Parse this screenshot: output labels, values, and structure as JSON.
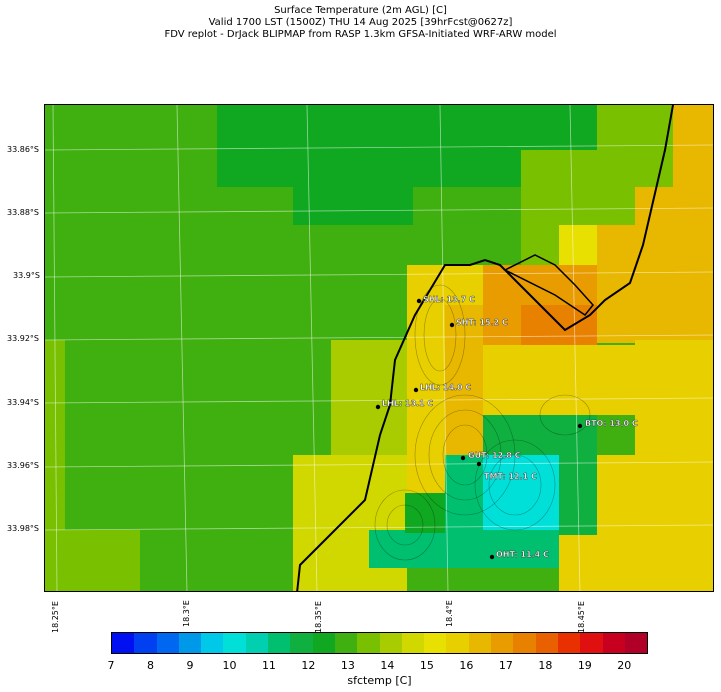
{
  "title": {
    "line1": "Surface Temperature (2m AGL) [C]",
    "line2": "Valid 1700 LST (1500Z) THU 14 Aug 2025 [39hrFcst@0627z]",
    "line3": "FDV replot - DrJack BLIPMAP from RASP 1.3km GFSA-Initiated WRF-ARW model"
  },
  "y_ticks": [
    "33.86°S",
    "33.88°S",
    "33.9°S",
    "33.92°S",
    "33.94°S",
    "33.96°S",
    "33.98°S"
  ],
  "x_ticks": [
    "18.25°E",
    "18.3°E",
    "18.35°E",
    "18.4°E",
    "18.45°E"
  ],
  "stations": [
    {
      "label": "SHL: 13.7 C"
    },
    {
      "label": "SHT: 15.2 C"
    },
    {
      "label": "LHL: 14.0 C"
    },
    {
      "label": "LHL: 13.1 C"
    },
    {
      "label": "BTO: 13.0 C"
    },
    {
      "label": "GUT: 12.8 C"
    },
    {
      "label": "TMT: 12.1 C"
    },
    {
      "label": "OHT: 11.4 C"
    }
  ],
  "colorbar": {
    "label": "sfctemp [C]",
    "ticks": [
      "7",
      "8",
      "9",
      "10",
      "11",
      "12",
      "13",
      "14",
      "15",
      "16",
      "17",
      "18",
      "19",
      "20"
    ],
    "colors": [
      "#0010f0",
      "#0040f0",
      "#0068f0",
      "#0098e8",
      "#00c8e8",
      "#00e0d8",
      "#00d0b0",
      "#00c070",
      "#10b040",
      "#10a820",
      "#40b010",
      "#78c000",
      "#a8cc00",
      "#d0d800",
      "#e8e000",
      "#e8d000",
      "#e8b800",
      "#e89c00",
      "#e88000",
      "#e86000",
      "#e83000",
      "#e01010",
      "#c80020",
      "#b00028"
    ]
  }
}
